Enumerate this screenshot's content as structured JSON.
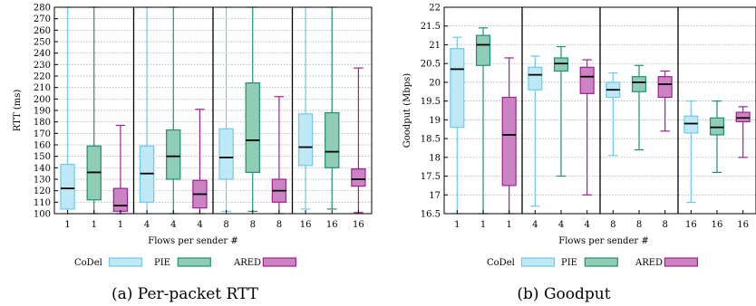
{
  "captions": [
    "(a) Per-packet RTT",
    "(b) Goodput"
  ],
  "legend": [
    {
      "name": "CoDel",
      "fill": "#bfe8f5",
      "stroke": "#6ec9ec"
    },
    {
      "name": "PIE",
      "fill": "#8fcdb5",
      "stroke": "#1e8f73"
    },
    {
      "name": "ARED",
      "fill": "#cc83c4",
      "stroke": "#a0208f"
    }
  ],
  "chart_data": [
    {
      "type": "box",
      "ylabel": "RTT (ms)",
      "xlabel": "Flows per sender #",
      "ylim": [
        100,
        280
      ],
      "yticks": [
        100,
        110,
        120,
        130,
        140,
        150,
        160,
        170,
        180,
        190,
        200,
        210,
        220,
        230,
        240,
        250,
        260,
        270,
        280
      ],
      "grid": true,
      "categories": [
        "1",
        "1",
        "1",
        "4",
        "4",
        "4",
        "8",
        "8",
        "8",
        "16",
        "16",
        "16"
      ],
      "series_of_box": [
        "CoDel",
        "PIE",
        "ARED",
        "CoDel",
        "PIE",
        "ARED",
        "CoDel",
        "PIE",
        "ARED",
        "CoDel",
        "PIE",
        "ARED"
      ],
      "boxes": [
        {
          "min": 100,
          "q1": 104,
          "median": 122,
          "q3": 143,
          "max": 280
        },
        {
          "min": 100,
          "q1": 112,
          "median": 136,
          "q3": 159,
          "max": 280
        },
        {
          "min": 100,
          "q1": 102,
          "median": 107,
          "q3": 122,
          "max": 177
        },
        {
          "min": 100,
          "q1": 110,
          "median": 135,
          "q3": 159,
          "max": 280
        },
        {
          "min": 100,
          "q1": 130,
          "median": 150,
          "q3": 173,
          "max": 280
        },
        {
          "min": 100,
          "q1": 105,
          "median": 117,
          "q3": 129,
          "max": 191
        },
        {
          "min": 102,
          "q1": 130,
          "median": 149,
          "q3": 174,
          "max": 280
        },
        {
          "min": 102,
          "q1": 136,
          "median": 164,
          "q3": 214,
          "max": 280
        },
        {
          "min": 100,
          "q1": 110,
          "median": 120,
          "q3": 130,
          "max": 202
        },
        {
          "min": 104,
          "q1": 142,
          "median": 158,
          "q3": 187,
          "max": 280
        },
        {
          "min": 104,
          "q1": 140,
          "median": 154,
          "q3": 188,
          "max": 280
        },
        {
          "min": 101,
          "q1": 124,
          "median": 130,
          "q3": 139,
          "max": 227
        }
      ]
    },
    {
      "type": "box",
      "ylabel": "Goodput (Mbps)",
      "xlabel": "Flows per sender #",
      "ylim": [
        16.5,
        22
      ],
      "yticks": [
        16.5,
        17,
        17.5,
        18,
        18.5,
        19,
        19.5,
        20,
        20.5,
        21,
        21.5,
        22
      ],
      "grid": true,
      "categories": [
        "1",
        "1",
        "1",
        "4",
        "4",
        "4",
        "8",
        "8",
        "8",
        "16",
        "16",
        "16"
      ],
      "series_of_box": [
        "CoDel",
        "PIE",
        "ARED",
        "CoDel",
        "PIE",
        "ARED",
        "CoDel",
        "PIE",
        "ARED",
        "CoDel",
        "PIE",
        "ARED"
      ],
      "boxes": [
        {
          "min": 16.5,
          "q1": 18.8,
          "median": 20.35,
          "q3": 20.9,
          "max": 21.2
        },
        {
          "min": 16.5,
          "q1": 20.45,
          "median": 21.0,
          "q3": 21.25,
          "max": 21.45
        },
        {
          "min": 16.5,
          "q1": 17.25,
          "median": 18.6,
          "q3": 19.6,
          "max": 20.65
        },
        {
          "min": 16.7,
          "q1": 19.8,
          "median": 20.2,
          "q3": 20.4,
          "max": 20.7
        },
        {
          "min": 17.5,
          "q1": 20.3,
          "median": 20.5,
          "q3": 20.65,
          "max": 20.95
        },
        {
          "min": 17.0,
          "q1": 19.7,
          "median": 20.15,
          "q3": 20.4,
          "max": 20.6
        },
        {
          "min": 18.05,
          "q1": 19.6,
          "median": 19.8,
          "q3": 20.0,
          "max": 20.25
        },
        {
          "min": 18.2,
          "q1": 19.75,
          "median": 20.0,
          "q3": 20.15,
          "max": 20.45
        },
        {
          "min": 18.7,
          "q1": 19.6,
          "median": 19.95,
          "q3": 20.15,
          "max": 20.3
        },
        {
          "min": 16.8,
          "q1": 18.65,
          "median": 18.9,
          "q3": 19.1,
          "max": 19.5
        },
        {
          "min": 17.6,
          "q1": 18.6,
          "median": 18.8,
          "q3": 19.05,
          "max": 19.5
        },
        {
          "min": 18.0,
          "q1": 18.95,
          "median": 19.05,
          "q3": 19.2,
          "max": 19.35
        }
      ]
    }
  ]
}
